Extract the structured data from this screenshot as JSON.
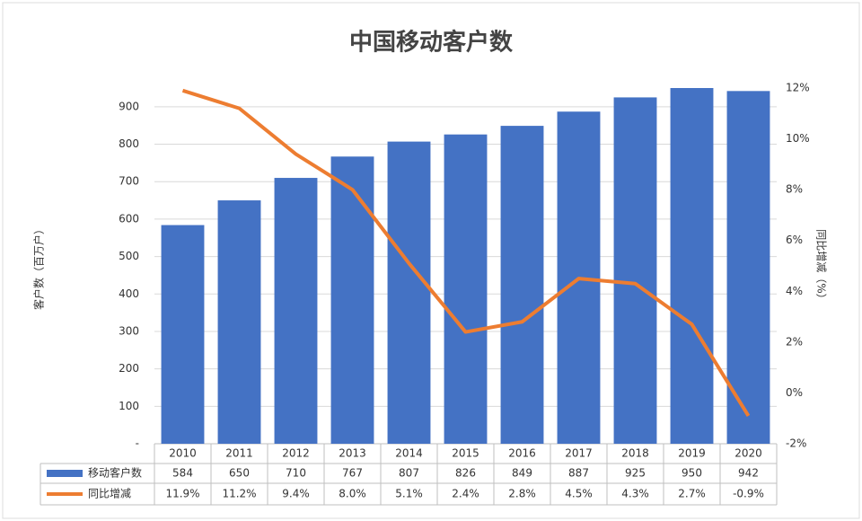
{
  "chart_data": {
    "type": "bar_line_table",
    "title": "中国移动客户数",
    "y_label": "客户数（百万户）",
    "y2_label": "同比增减（%）",
    "categories": [
      "2010",
      "2011",
      "2012",
      "2013",
      "2014",
      "2015",
      "2016",
      "2017",
      "2018",
      "2019",
      "2020"
    ],
    "series": [
      {
        "name": "移动客户数",
        "type": "bar",
        "color": "#4472c4",
        "values": [
          584,
          650,
          710,
          767,
          807,
          826,
          849,
          887,
          925,
          950,
          942
        ]
      },
      {
        "name": "同比增减",
        "type": "line",
        "axis": "y2",
        "color": "#ed7d31",
        "values": [
          11.9,
          11.2,
          9.4,
          8.0,
          5.1,
          2.4,
          2.8,
          4.5,
          4.3,
          2.7,
          -0.9
        ],
        "value_labels": [
          "11.9%",
          "11.2%",
          "9.4%",
          "8.0%",
          "5.1%",
          "2.4%",
          "2.8%",
          "4.5%",
          "4.3%",
          "2.7%",
          "-0.9%"
        ]
      }
    ],
    "ylim": [
      0,
      950
    ],
    "yticks": [
      {
        "value": 0,
        "label": "-"
      },
      100,
      200,
      300,
      400,
      500,
      600,
      700,
      800,
      900
    ],
    "y2lim": [
      -2,
      12
    ],
    "y2ticks": [
      {
        "value": -2,
        "label": "-2%"
      },
      {
        "value": 0,
        "label": "0%"
      },
      {
        "value": 2,
        "label": "2%"
      },
      {
        "value": 4,
        "label": "4%"
      },
      {
        "value": 6,
        "label": "6%"
      },
      {
        "value": 8,
        "label": "8%"
      },
      {
        "value": 10,
        "label": "10%"
      },
      {
        "value": 12,
        "label": "12%"
      }
    ],
    "grid": true
  }
}
